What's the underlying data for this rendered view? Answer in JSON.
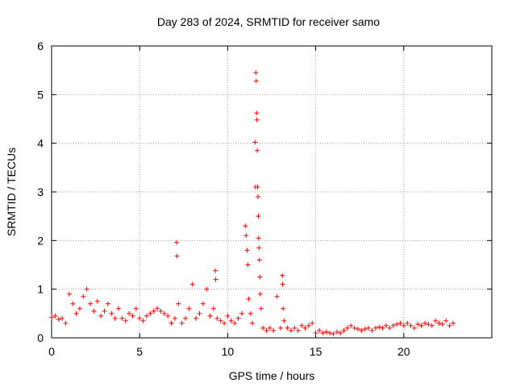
{
  "chart_data": {
    "type": "scatter",
    "title": "Day 283 of 2024, SRMTID for receiver samo",
    "xlabel": "GPS time / hours",
    "ylabel": "SRMTID / TECUs",
    "xlim": [
      0,
      25
    ],
    "ylim": [
      0,
      6
    ],
    "x_ticks": [
      0,
      5,
      10,
      15,
      20
    ],
    "y_ticks": [
      0,
      1,
      2,
      3,
      4,
      5,
      6
    ],
    "grid": true,
    "marker": "+",
    "series_color": "#ff0000",
    "series": [
      {
        "name": "SRMTID",
        "points": [
          [
            0.0,
            0.42
          ],
          [
            0.2,
            0.45
          ],
          [
            0.4,
            0.38
          ],
          [
            0.6,
            0.4
          ],
          [
            0.8,
            0.3
          ],
          [
            1.0,
            0.9
          ],
          [
            1.2,
            0.7
          ],
          [
            1.4,
            0.5
          ],
          [
            1.6,
            0.6
          ],
          [
            1.8,
            0.85
          ],
          [
            2.0,
            1.0
          ],
          [
            2.2,
            0.7
          ],
          [
            2.4,
            0.55
          ],
          [
            2.6,
            0.75
          ],
          [
            2.8,
            0.45
          ],
          [
            3.0,
            0.55
          ],
          [
            3.2,
            0.7
          ],
          [
            3.4,
            0.5
          ],
          [
            3.6,
            0.4
          ],
          [
            3.8,
            0.6
          ],
          [
            4.0,
            0.4
          ],
          [
            4.2,
            0.35
          ],
          [
            4.4,
            0.5
          ],
          [
            4.6,
            0.45
          ],
          [
            4.8,
            0.6
          ],
          [
            5.0,
            0.4
          ],
          [
            5.2,
            0.35
          ],
          [
            5.4,
            0.45
          ],
          [
            5.6,
            0.5
          ],
          [
            5.8,
            0.55
          ],
          [
            6.0,
            0.6
          ],
          [
            6.2,
            0.55
          ],
          [
            6.4,
            0.5
          ],
          [
            6.6,
            0.45
          ],
          [
            6.8,
            0.3
          ],
          [
            7.0,
            0.4
          ],
          [
            7.1,
            1.96
          ],
          [
            7.12,
            1.68
          ],
          [
            7.2,
            0.7
          ],
          [
            7.4,
            0.3
          ],
          [
            7.6,
            0.4
          ],
          [
            7.8,
            0.6
          ],
          [
            8.0,
            1.1
          ],
          [
            8.2,
            0.4
          ],
          [
            8.4,
            0.5
          ],
          [
            8.6,
            0.7
          ],
          [
            8.8,
            1.0
          ],
          [
            9.0,
            0.45
          ],
          [
            9.2,
            0.6
          ],
          [
            9.3,
            1.38
          ],
          [
            9.32,
            1.2
          ],
          [
            9.4,
            0.4
          ],
          [
            9.6,
            0.35
          ],
          [
            9.8,
            0.3
          ],
          [
            10.0,
            0.45
          ],
          [
            10.2,
            0.35
          ],
          [
            10.4,
            0.3
          ],
          [
            10.6,
            0.4
          ],
          [
            10.8,
            0.5
          ],
          [
            11.0,
            2.3
          ],
          [
            11.05,
            2.1
          ],
          [
            11.1,
            1.8
          ],
          [
            11.15,
            1.5
          ],
          [
            11.2,
            0.8
          ],
          [
            11.3,
            0.5
          ],
          [
            11.4,
            0.3
          ],
          [
            11.55,
            4.02
          ],
          [
            11.58,
            3.1
          ],
          [
            11.6,
            5.45
          ],
          [
            11.62,
            5.28
          ],
          [
            11.64,
            4.62
          ],
          [
            11.66,
            4.48
          ],
          [
            11.68,
            3.85
          ],
          [
            11.7,
            3.1
          ],
          [
            11.72,
            2.9
          ],
          [
            11.74,
            2.5
          ],
          [
            11.76,
            2.05
          ],
          [
            11.78,
            1.85
          ],
          [
            11.8,
            1.6
          ],
          [
            11.82,
            1.25
          ],
          [
            11.85,
            0.9
          ],
          [
            11.9,
            0.6
          ],
          [
            12.0,
            0.2
          ],
          [
            12.2,
            0.15
          ],
          [
            12.4,
            0.2
          ],
          [
            12.6,
            0.15
          ],
          [
            12.8,
            0.85
          ],
          [
            13.0,
            0.2
          ],
          [
            13.1,
            1.28
          ],
          [
            13.12,
            1.1
          ],
          [
            13.15,
            0.6
          ],
          [
            13.2,
            0.35
          ],
          [
            13.4,
            0.2
          ],
          [
            13.6,
            0.15
          ],
          [
            13.8,
            0.2
          ],
          [
            14.0,
            0.15
          ],
          [
            14.2,
            0.25
          ],
          [
            14.4,
            0.2
          ],
          [
            14.6,
            0.25
          ],
          [
            14.8,
            0.3
          ],
          [
            15.0,
            0.1
          ],
          [
            15.2,
            0.15
          ],
          [
            15.4,
            0.1
          ],
          [
            15.6,
            0.12
          ],
          [
            15.8,
            0.1
          ],
          [
            16.0,
            0.08
          ],
          [
            16.2,
            0.12
          ],
          [
            16.4,
            0.1
          ],
          [
            16.6,
            0.15
          ],
          [
            16.8,
            0.2
          ],
          [
            17.0,
            0.25
          ],
          [
            17.2,
            0.2
          ],
          [
            17.4,
            0.18
          ],
          [
            17.6,
            0.15
          ],
          [
            17.8,
            0.18
          ],
          [
            18.0,
            0.2
          ],
          [
            18.2,
            0.15
          ],
          [
            18.4,
            0.2
          ],
          [
            18.6,
            0.22
          ],
          [
            18.8,
            0.2
          ],
          [
            19.0,
            0.25
          ],
          [
            19.2,
            0.2
          ],
          [
            19.4,
            0.25
          ],
          [
            19.6,
            0.28
          ],
          [
            19.8,
            0.3
          ],
          [
            20.0,
            0.25
          ],
          [
            20.2,
            0.3
          ],
          [
            20.4,
            0.25
          ],
          [
            20.6,
            0.2
          ],
          [
            20.8,
            0.28
          ],
          [
            21.0,
            0.25
          ],
          [
            21.2,
            0.3
          ],
          [
            21.4,
            0.28
          ],
          [
            21.6,
            0.25
          ],
          [
            21.8,
            0.35
          ],
          [
            22.0,
            0.3
          ],
          [
            22.2,
            0.28
          ],
          [
            22.4,
            0.35
          ],
          [
            22.6,
            0.25
          ],
          [
            22.8,
            0.3
          ]
        ]
      }
    ]
  }
}
